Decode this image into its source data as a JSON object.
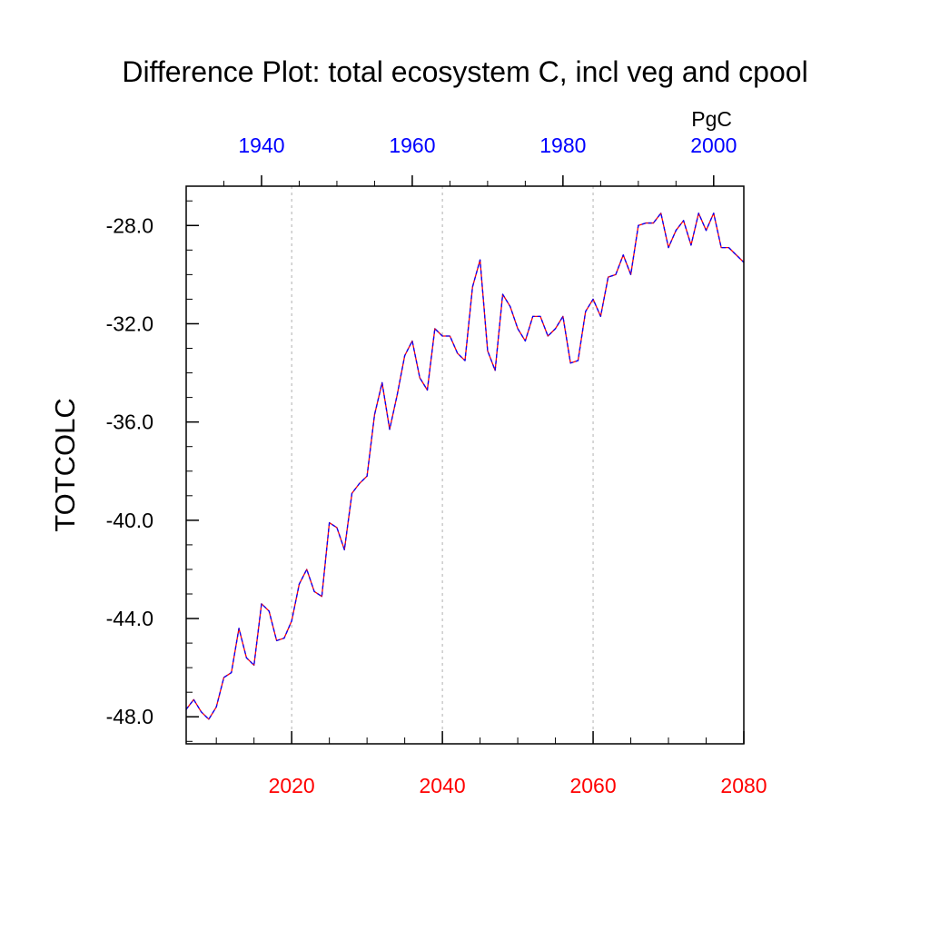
{
  "chart_data": {
    "type": "line",
    "title": "Difference Plot: total ecosystem C, incl veg and cpool",
    "ylabel": "TOTCOLC",
    "units": "PgC",
    "ylim": [
      -49.1,
      -26.4
    ],
    "y_ticks": [
      -48,
      -44,
      -40,
      -36,
      -32,
      -28
    ],
    "y_tick_labels": [
      "-48.0",
      "-44.0",
      "-40.0",
      "-36.0",
      "-32.0",
      "-28.0"
    ],
    "x_bottom": {
      "range": [
        2006,
        2080
      ],
      "ticks": [
        2020,
        2040,
        2060,
        2080
      ],
      "tick_labels": [
        "2020",
        "2040",
        "2060",
        "2080"
      ],
      "color": "#ff0000"
    },
    "x_top": {
      "range": [
        1930,
        2004
      ],
      "ticks": [
        1940,
        1960,
        1980,
        2000
      ],
      "tick_labels": [
        "1940",
        "1960",
        "1980",
        "2000"
      ],
      "color": "#0000ff"
    },
    "grid": "vertical dotted at bottom-axis major ticks",
    "series": [
      {
        "color": "#ff0000",
        "dash_color": "#0000ff",
        "x": [
          2006,
          2007,
          2008,
          2009,
          2010,
          2011,
          2012,
          2013,
          2014,
          2015,
          2016,
          2017,
          2018,
          2019,
          2020,
          2021,
          2022,
          2023,
          2024,
          2025,
          2026,
          2027,
          2028,
          2029,
          2030,
          2031,
          2032,
          2033,
          2034,
          2035,
          2036,
          2037,
          2038,
          2039,
          2040,
          2041,
          2042,
          2043,
          2044,
          2045,
          2046,
          2047,
          2048,
          2049,
          2050,
          2051,
          2052,
          2053,
          2054,
          2055,
          2056,
          2057,
          2058,
          2059,
          2060,
          2061,
          2062,
          2063,
          2064,
          2065,
          2066,
          2067,
          2068,
          2069,
          2070,
          2071,
          2072,
          2073,
          2074,
          2075,
          2076,
          2077,
          2078,
          2079,
          2080
        ],
        "values": [
          -47.7,
          -47.3,
          -47.8,
          -48.1,
          -47.6,
          -46.4,
          -46.2,
          -44.4,
          -45.6,
          -45.9,
          -43.4,
          -43.7,
          -44.9,
          -44.8,
          -44.1,
          -42.6,
          -42.0,
          -42.9,
          -43.1,
          -40.1,
          -40.3,
          -41.2,
          -38.9,
          -38.5,
          -38.2,
          -35.7,
          -34.4,
          -36.3,
          -34.9,
          -33.3,
          -32.7,
          -34.2,
          -34.7,
          -32.2,
          -32.5,
          -32.5,
          -33.2,
          -33.5,
          -30.5,
          -29.4,
          -33.1,
          -33.9,
          -30.8,
          -31.3,
          -32.2,
          -32.7,
          -31.7,
          -31.7,
          -32.5,
          -32.2,
          -31.7,
          -33.6,
          -33.5,
          -31.5,
          -31.0,
          -31.7,
          -30.1,
          -30.0,
          -29.2,
          -30.0,
          -28.0,
          -27.9,
          -27.9,
          -27.5,
          -28.9,
          -28.2,
          -27.8,
          -28.8,
          -27.5,
          -28.2,
          -27.5,
          -28.9,
          -28.9,
          -29.2,
          -29.5
        ]
      }
    ]
  }
}
